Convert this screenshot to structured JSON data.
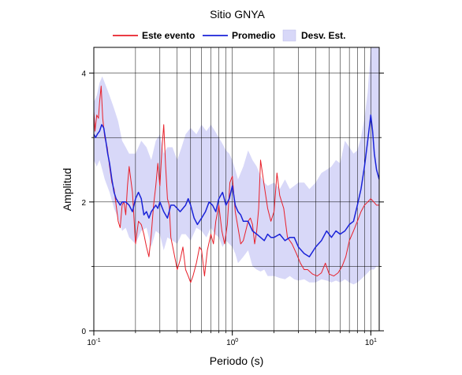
{
  "chart_data": {
    "type": "line",
    "title": "Sitio GNYA",
    "xlabel": "Periodo (s)",
    "ylabel": "Amplitud",
    "x_scale": "log",
    "xlim": [
      0.1,
      11.5
    ],
    "ylim": [
      0,
      4.4
    ],
    "grid": true,
    "legend_position": "top",
    "x_ticks": [
      {
        "value": 0.1,
        "base": "10",
        "exp": "-1"
      },
      {
        "value": 1,
        "base": "10",
        "exp": "0"
      },
      {
        "value": 10,
        "base": "10",
        "exp": "1"
      }
    ],
    "y_ticks": [
      {
        "value": 0,
        "label": "0"
      },
      {
        "value": 2,
        "label": "2"
      },
      {
        "value": 4,
        "label": "4"
      }
    ],
    "legend": [
      {
        "label": "Este evento",
        "kind": "line",
        "color": "#e8202a"
      },
      {
        "label": "Promedio",
        "kind": "line",
        "color": "#1a23d8"
      },
      {
        "label": "Desv. Est.",
        "kind": "band",
        "color": "#d8d8f8"
      }
    ],
    "band_color": "#d8d8f8",
    "std_band": {
      "x": [
        0.1,
        0.105,
        0.11,
        0.115,
        0.12,
        0.13,
        0.14,
        0.15,
        0.16,
        0.17,
        0.18,
        0.2,
        0.22,
        0.24,
        0.26,
        0.28,
        0.3,
        0.32,
        0.34,
        0.37,
        0.4,
        0.43,
        0.46,
        0.5,
        0.55,
        0.6,
        0.65,
        0.7,
        0.75,
        0.8,
        0.85,
        0.9,
        0.95,
        1.0,
        1.05,
        1.1,
        1.2,
        1.3,
        1.4,
        1.5,
        1.6,
        1.7,
        1.8,
        2.0,
        2.2,
        2.4,
        2.6,
        2.8,
        3.0,
        3.3,
        3.6,
        4.0,
        4.4,
        4.8,
        5.2,
        5.6,
        6.0,
        6.5,
        7.0,
        7.5,
        8.0,
        8.5,
        9.0,
        9.5,
        10.0,
        10.5,
        11.0,
        11.5
      ],
      "upper": [
        3.55,
        3.65,
        3.85,
        3.95,
        3.85,
        3.65,
        3.45,
        3.25,
        2.95,
        2.85,
        2.75,
        2.75,
        2.95,
        2.85,
        2.65,
        2.95,
        3.05,
        2.75,
        2.85,
        2.85,
        2.65,
        2.85,
        3.05,
        3.15,
        3.05,
        3.2,
        3.1,
        3.2,
        3.1,
        3.0,
        2.9,
        2.8,
        2.75,
        2.65,
        2.5,
        2.35,
        2.55,
        2.8,
        2.65,
        2.55,
        2.4,
        2.3,
        2.25,
        2.3,
        2.2,
        2.35,
        2.2,
        2.25,
        2.3,
        2.3,
        2.2,
        2.3,
        2.45,
        2.5,
        2.55,
        2.65,
        2.6,
        2.95,
        2.85,
        2.75,
        2.8,
        3.0,
        3.3,
        3.7,
        4.4,
        4.4,
        4.4,
        4.4
      ],
      "lower": [
        2.65,
        2.55,
        2.65,
        2.5,
        2.35,
        2.15,
        1.9,
        1.75,
        1.55,
        1.6,
        1.45,
        1.35,
        1.55,
        1.6,
        1.3,
        1.55,
        1.5,
        1.25,
        1.45,
        1.4,
        1.35,
        1.5,
        1.5,
        1.4,
        1.6,
        1.55,
        1.45,
        1.6,
        1.5,
        1.45,
        1.3,
        1.4,
        1.35,
        1.3,
        1.2,
        1.05,
        1.15,
        1.25,
        1.0,
        0.95,
        0.92,
        0.95,
        0.85,
        0.85,
        0.82,
        0.8,
        0.85,
        0.8,
        0.78,
        0.8,
        0.75,
        0.75,
        0.8,
        0.78,
        0.75,
        0.78,
        0.75,
        0.8,
        0.75,
        0.72,
        0.75,
        0.8,
        0.85,
        0.9,
        0.95,
        0.95,
        1.0,
        1.0
      ]
    },
    "series": [
      {
        "name": "Este evento",
        "color": "#e8202a",
        "x": [
          0.1,
          0.102,
          0.105,
          0.108,
          0.11,
          0.113,
          0.116,
          0.12,
          0.125,
          0.13,
          0.135,
          0.14,
          0.145,
          0.15,
          0.155,
          0.16,
          0.165,
          0.17,
          0.175,
          0.18,
          0.19,
          0.2,
          0.21,
          0.22,
          0.23,
          0.24,
          0.25,
          0.26,
          0.27,
          0.28,
          0.29,
          0.3,
          0.31,
          0.32,
          0.33,
          0.34,
          0.35,
          0.36,
          0.38,
          0.4,
          0.42,
          0.44,
          0.46,
          0.48,
          0.5,
          0.52,
          0.55,
          0.58,
          0.6,
          0.63,
          0.66,
          0.7,
          0.73,
          0.76,
          0.8,
          0.84,
          0.88,
          0.92,
          0.96,
          1.0,
          1.05,
          1.1,
          1.15,
          1.2,
          1.25,
          1.3,
          1.35,
          1.4,
          1.45,
          1.5,
          1.55,
          1.6,
          1.7,
          1.8,
          1.9,
          2.0,
          2.1,
          2.2,
          2.35,
          2.5,
          2.7,
          2.9,
          3.1,
          3.3,
          3.5,
          3.8,
          4.1,
          4.4,
          4.7,
          5.0,
          5.4,
          5.8,
          6.2,
          6.6,
          7.0,
          7.5,
          8.0,
          8.5,
          9.0,
          9.5,
          10.0,
          10.5,
          11.0,
          11.5
        ],
        "y": [
          3.4,
          3.1,
          3.35,
          3.3,
          3.55,
          3.8,
          3.3,
          3.0,
          2.85,
          2.55,
          2.3,
          2.2,
          1.95,
          1.7,
          1.6,
          1.95,
          2.0,
          1.8,
          2.25,
          2.55,
          2.15,
          1.35,
          1.7,
          1.65,
          1.5,
          1.3,
          1.15,
          1.5,
          1.95,
          2.25,
          2.6,
          2.25,
          2.8,
          3.2,
          2.55,
          2.05,
          1.95,
          1.45,
          1.2,
          0.95,
          1.1,
          1.3,
          0.95,
          0.85,
          0.75,
          0.85,
          1.05,
          1.3,
          1.25,
          0.85,
          1.25,
          1.5,
          1.35,
          1.7,
          1.95,
          1.55,
          1.35,
          1.65,
          2.3,
          2.4,
          1.85,
          1.6,
          1.35,
          1.4,
          1.55,
          1.7,
          1.75,
          1.65,
          1.35,
          1.55,
          1.9,
          2.65,
          2.25,
          1.9,
          1.7,
          1.85,
          2.45,
          2.1,
          1.9,
          1.45,
          1.35,
          1.2,
          1.05,
          0.95,
          0.95,
          0.88,
          0.85,
          0.9,
          1.05,
          0.88,
          0.85,
          0.9,
          1.0,
          1.15,
          1.4,
          1.55,
          1.7,
          1.85,
          1.95,
          2.0,
          2.05,
          2.0,
          1.95,
          1.95
        ]
      },
      {
        "name": "Promedio",
        "color": "#1a23d8",
        "x": [
          0.1,
          0.103,
          0.106,
          0.11,
          0.114,
          0.118,
          0.122,
          0.126,
          0.13,
          0.135,
          0.14,
          0.145,
          0.15,
          0.155,
          0.16,
          0.17,
          0.18,
          0.19,
          0.2,
          0.21,
          0.22,
          0.23,
          0.24,
          0.25,
          0.26,
          0.27,
          0.28,
          0.29,
          0.3,
          0.32,
          0.34,
          0.36,
          0.38,
          0.4,
          0.42,
          0.44,
          0.46,
          0.48,
          0.5,
          0.53,
          0.56,
          0.6,
          0.64,
          0.68,
          0.72,
          0.76,
          0.8,
          0.85,
          0.9,
          0.95,
          1.0,
          1.05,
          1.1,
          1.15,
          1.2,
          1.3,
          1.4,
          1.5,
          1.6,
          1.7,
          1.8,
          1.9,
          2.0,
          2.2,
          2.4,
          2.6,
          2.8,
          3.0,
          3.3,
          3.6,
          4.0,
          4.4,
          4.8,
          5.2,
          5.6,
          6.0,
          6.5,
          7.0,
          7.5,
          8.0,
          8.5,
          9.0,
          9.5,
          10.0,
          10.3,
          10.6,
          11.0,
          11.5
        ],
        "y": [
          3.05,
          3.0,
          3.05,
          3.1,
          3.2,
          3.15,
          2.95,
          2.75,
          2.6,
          2.35,
          2.15,
          2.05,
          2.0,
          1.95,
          2.0,
          2.0,
          1.95,
          1.85,
          2.05,
          2.15,
          2.05,
          1.8,
          1.85,
          1.75,
          1.85,
          1.9,
          1.95,
          1.9,
          2.0,
          1.85,
          1.75,
          1.95,
          1.95,
          1.9,
          1.85,
          1.9,
          1.95,
          2.05,
          1.95,
          1.75,
          1.65,
          1.75,
          1.85,
          2.0,
          1.95,
          1.85,
          2.05,
          2.15,
          1.95,
          2.05,
          2.25,
          1.95,
          1.85,
          1.8,
          1.7,
          1.7,
          1.55,
          1.5,
          1.45,
          1.4,
          1.5,
          1.45,
          1.45,
          1.5,
          1.4,
          1.45,
          1.45,
          1.3,
          1.2,
          1.15,
          1.3,
          1.4,
          1.55,
          1.45,
          1.55,
          1.5,
          1.55,
          1.65,
          1.7,
          1.95,
          2.2,
          2.55,
          2.95,
          3.35,
          3.1,
          2.75,
          2.5,
          2.35
        ]
      }
    ]
  }
}
